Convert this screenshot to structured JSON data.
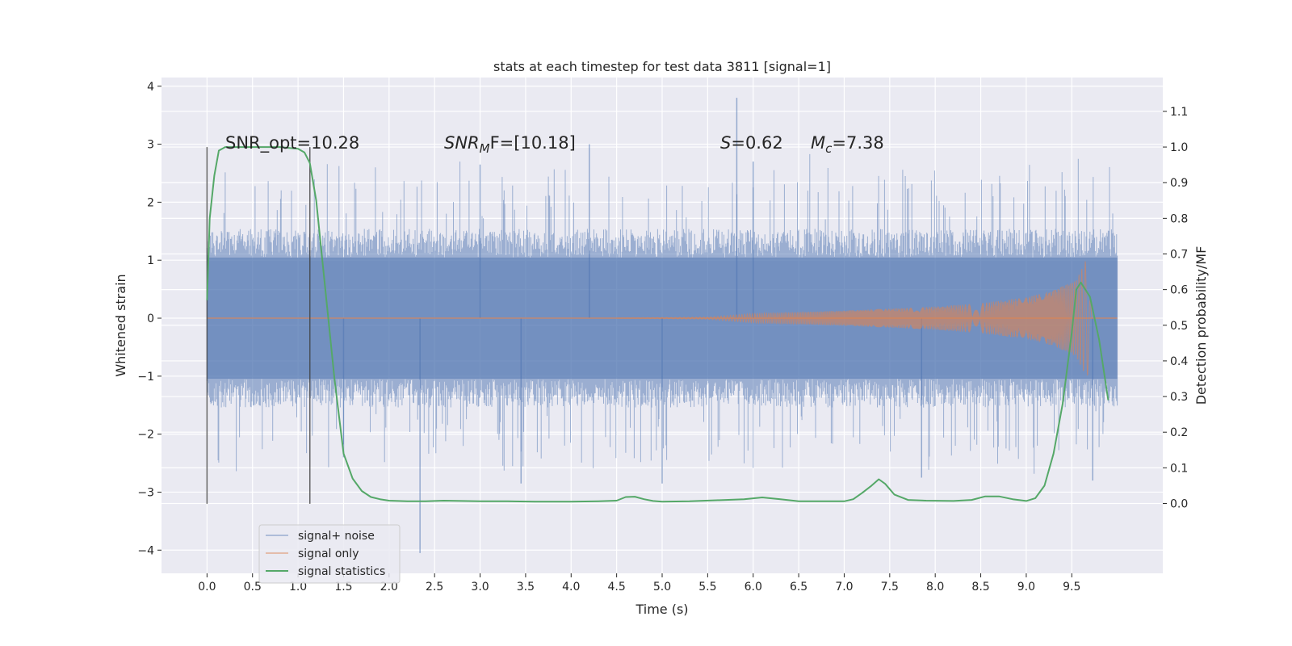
{
  "chart_data": {
    "type": "line",
    "title": "stats at each timestep for test data 3811 [signal=1]",
    "xlabel": "Time (s)",
    "ylabel_left": "Whitened strain",
    "ylabel_right": "Detection probability/MF",
    "xlim": [
      -0.5,
      10.5
    ],
    "ylim_left": [
      -4.4,
      4.15
    ],
    "ylim_right": [
      -0.196,
      1.195
    ],
    "x_ticks": [
      0.0,
      0.5,
      1.0,
      1.5,
      2.0,
      2.5,
      3.0,
      3.5,
      4.0,
      4.5,
      5.0,
      5.5,
      6.0,
      6.5,
      7.0,
      7.5,
      8.0,
      8.5,
      9.0,
      9.5
    ],
    "x_tick_labels": [
      "0.0",
      "0.5",
      "1.0",
      "1.5",
      "2.0",
      "2.5",
      "3.0",
      "3.5",
      "4.0",
      "4.5",
      "5.0",
      "5.5",
      "6.0",
      "6.5",
      "7.0",
      "7.5",
      "8.0",
      "8.5",
      "9.0",
      "9.5"
    ],
    "y_left_ticks": [
      -4,
      -3,
      -2,
      -1,
      0,
      1,
      2,
      3,
      4
    ],
    "y_left_tick_labels": [
      "−4",
      "−3",
      "−2",
      "−1",
      "0",
      "1",
      "2",
      "3",
      "4"
    ],
    "y_right_ticks": [
      0.0,
      0.1,
      0.2,
      0.3,
      0.4,
      0.5,
      0.6,
      0.7,
      0.8,
      0.9,
      1.0,
      1.1
    ],
    "y_right_tick_labels": [
      "0.0",
      "0.1",
      "0.2",
      "0.3",
      "0.4",
      "0.5",
      "0.6",
      "0.7",
      "0.8",
      "0.9",
      "1.0",
      "1.1"
    ],
    "grid": true,
    "legend_placement": "lower-left",
    "annotations": {
      "snr_opt": "SNR_opt=10.28",
      "snr_mf_base": "SNR",
      "snr_mf_sub": "M",
      "snr_mf_rest": "F=[10.18]",
      "s_label": "S",
      "s_value": "=0.62",
      "mc_base": "M",
      "mc_sub": "c",
      "mc_value": "=7.38"
    },
    "vertical_markers_x": [
      0.0,
      1.13
    ],
    "vertical_markers_range": [
      -3.2,
      2.95
    ],
    "series": [
      {
        "name": "signal+ noise",
        "color": "#4c72b0",
        "axis": "left",
        "kind": "noise-band",
        "x_range": [
          0.0,
          10.0
        ],
        "typical_amplitude": 1.1,
        "peak_max": 3.8,
        "peak_min": -4.05,
        "spikes": [
          [
            5.82,
            3.8
          ],
          [
            2.34,
            -4.05
          ],
          [
            4.2,
            3.0
          ],
          [
            6.0,
            2.7
          ],
          [
            3.45,
            -2.85
          ],
          [
            5.0,
            -2.85
          ],
          [
            7.85,
            -2.75
          ],
          [
            9.73,
            -2.8
          ],
          [
            1.5,
            -2.4
          ],
          [
            3.0,
            2.65
          ]
        ]
      },
      {
        "name": "signal only",
        "color": "#dd8452",
        "axis": "left",
        "kind": "chirp",
        "x_range": [
          0.0,
          10.0
        ],
        "envelope": [
          [
            5.5,
            0.02
          ],
          [
            6.0,
            0.08
          ],
          [
            7.0,
            0.13
          ],
          [
            8.0,
            0.2
          ],
          [
            8.5,
            0.26
          ],
          [
            9.0,
            0.36
          ],
          [
            9.3,
            0.48
          ],
          [
            9.55,
            0.66
          ],
          [
            9.67,
            1.05
          ],
          [
            9.72,
            0.0
          ]
        ]
      },
      {
        "name": "signal statistics",
        "color": "#55a868",
        "axis": "right",
        "kind": "line",
        "x": [
          0.0,
          0.03,
          0.08,
          0.13,
          0.2,
          0.3,
          0.5,
          0.8,
          1.0,
          1.07,
          1.13,
          1.2,
          1.3,
          1.4,
          1.5,
          1.6,
          1.7,
          1.8,
          1.9,
          2.0,
          2.2,
          2.4,
          2.6,
          2.8,
          3.0,
          3.3,
          3.6,
          4.0,
          4.3,
          4.5,
          4.6,
          4.7,
          4.8,
          4.9,
          5.0,
          5.3,
          5.6,
          5.9,
          6.1,
          6.3,
          6.5,
          6.8,
          7.0,
          7.1,
          7.2,
          7.3,
          7.38,
          7.45,
          7.55,
          7.7,
          7.9,
          8.2,
          8.4,
          8.55,
          8.7,
          8.85,
          9.0,
          9.1,
          9.2,
          9.3,
          9.4,
          9.5,
          9.55,
          9.6,
          9.7,
          9.8,
          9.9
        ],
        "y": [
          0.57,
          0.8,
          0.92,
          0.99,
          1.0,
          1.0,
          1.0,
          1.0,
          0.995,
          0.985,
          0.955,
          0.85,
          0.6,
          0.35,
          0.14,
          0.07,
          0.035,
          0.018,
          0.012,
          0.008,
          0.006,
          0.006,
          0.008,
          0.007,
          0.006,
          0.006,
          0.005,
          0.005,
          0.006,
          0.008,
          0.018,
          0.019,
          0.012,
          0.007,
          0.005,
          0.006,
          0.009,
          0.012,
          0.017,
          0.012,
          0.006,
          0.006,
          0.006,
          0.012,
          0.03,
          0.05,
          0.068,
          0.055,
          0.025,
          0.01,
          0.008,
          0.007,
          0.01,
          0.02,
          0.02,
          0.012,
          0.007,
          0.015,
          0.05,
          0.14,
          0.28,
          0.48,
          0.6,
          0.62,
          0.58,
          0.46,
          0.29
        ]
      }
    ]
  }
}
